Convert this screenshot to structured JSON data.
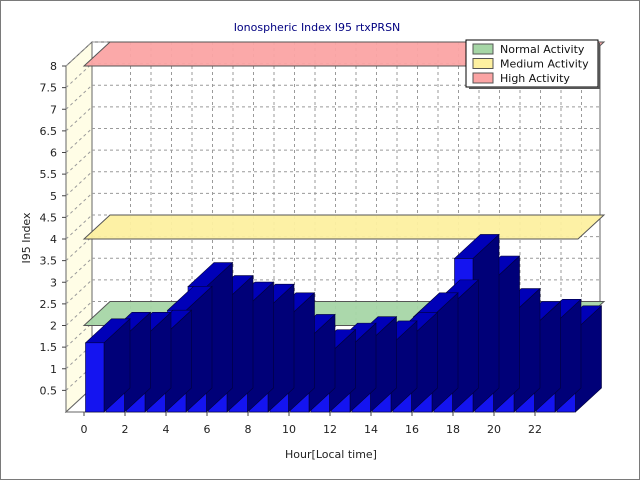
{
  "chart_data": {
    "type": "bar",
    "title": "Ionospheric Index I95 rtxPRSN",
    "xlabel": "Hour[Local time]",
    "ylabel": "I95 Index",
    "ylim": [
      0,
      8
    ],
    "y_ticks": [
      "0.5",
      "1",
      "1.5",
      "2",
      "2.5",
      "3",
      "3.5",
      "4",
      "4.5",
      "5",
      "5.5",
      "6",
      "6.5",
      "7",
      "7.5",
      "8"
    ],
    "x_ticks": [
      "0",
      "2",
      "4",
      "6",
      "8",
      "10",
      "12",
      "14",
      "16",
      "18",
      "20",
      "22"
    ],
    "x_tick_hours": [
      0,
      2,
      4,
      6,
      8,
      10,
      12,
      14,
      16,
      18,
      20,
      22
    ],
    "hours": [
      0,
      1,
      2,
      3,
      4,
      5,
      6,
      7,
      8,
      9,
      10,
      11,
      12,
      13,
      14,
      15,
      16,
      17,
      18,
      19,
      20,
      21,
      22,
      23
    ],
    "values": [
      1.6,
      1.75,
      1.75,
      1.8,
      2.35,
      2.9,
      2.6,
      2.45,
      2.4,
      2.2,
      1.7,
      1.35,
      1.5,
      1.65,
      1.55,
      1.75,
      2.2,
      2.5,
      3.55,
      3.05,
      2.3,
      2.0,
      2.05,
      1.9
    ],
    "bar_color": "#1414f0",
    "grid": true,
    "legend_position": "top-right",
    "bands": [
      {
        "name": "Normal Activity",
        "level": 2.0,
        "color": "#a6d6a6"
      },
      {
        "name": "Medium Activity",
        "level": 4.0,
        "color": "#fdf0a0"
      },
      {
        "name": "High Activity",
        "level": 8.0,
        "color": "#fba4a4"
      }
    ]
  }
}
